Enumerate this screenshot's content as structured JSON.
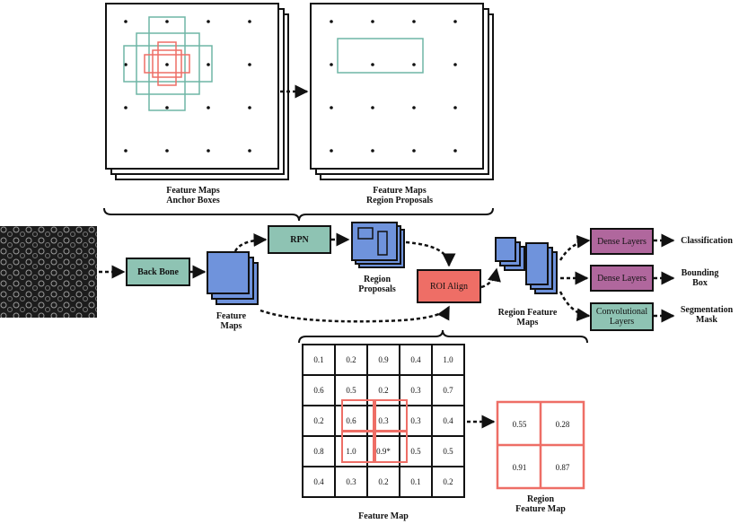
{
  "top": {
    "panel1_caption": [
      "Feature Maps",
      "Anchor Boxes"
    ],
    "panel2_caption": [
      "Feature Maps",
      "Region Proposals"
    ]
  },
  "pipeline": {
    "backbone": "Back Bone",
    "rpn": "RPN",
    "roi_align": "ROI Align",
    "feature_maps_label": [
      "Feature",
      "Maps"
    ],
    "region_proposals_label": [
      "Region",
      "Proposals"
    ],
    "region_feature_maps_label": [
      "Region Feature",
      "Maps"
    ],
    "heads": [
      {
        "box": "Dense Layers",
        "output": [
          "Classification"
        ]
      },
      {
        "box": "Dense Layers",
        "output": [
          "Bounding",
          "Box"
        ]
      },
      {
        "box": [
          "Convolutional",
          "Layers"
        ],
        "output": [
          "Segmentation",
          "Mask"
        ]
      }
    ]
  },
  "feature_map": {
    "caption": "Feature Map",
    "rows": [
      [
        "0.1",
        "0.2",
        "0.9",
        "0.4",
        "1.0"
      ],
      [
        "0.6",
        "0.5",
        "0.2",
        "0.3",
        "0.7"
      ],
      [
        "0.2",
        "0.6",
        "0.3",
        "0.3",
        "0.4"
      ],
      [
        "0.8",
        "1.0",
        "0.9*",
        "0.5",
        "0.5"
      ],
      [
        "0.4",
        "0.3",
        "0.2",
        "0.1",
        "0.2"
      ]
    ]
  },
  "region_feature_map": {
    "caption": [
      "Region",
      "Feature Map"
    ],
    "rows": [
      [
        "0.55",
        "0.28"
      ],
      [
        "0.91",
        "0.87"
      ]
    ]
  },
  "colors": {
    "backbone": "#8ec3b3",
    "rpn": "#8ec3b3",
    "roi": "#ee6e66",
    "feature_blue": "#6f93dc",
    "dense": "#b0679d",
    "conv": "#8ec3b3",
    "anchor_teal": "#6fb5a5",
    "anchor_red": "#ee6e66"
  }
}
